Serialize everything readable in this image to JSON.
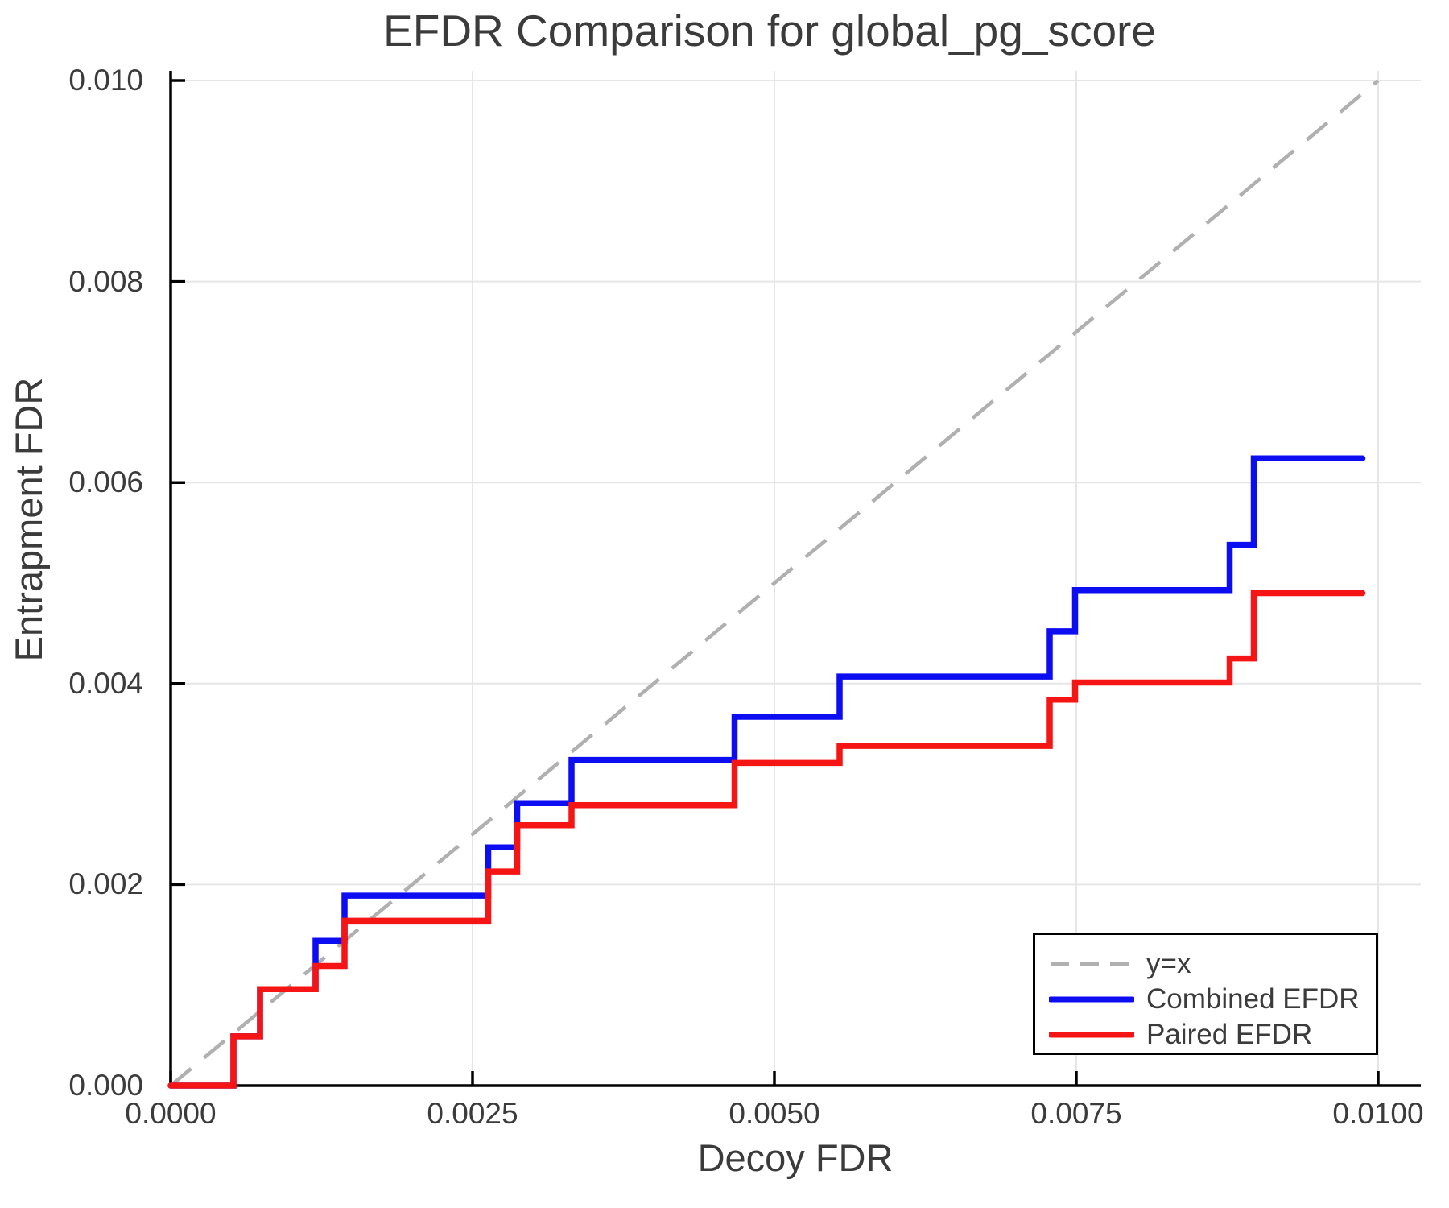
{
  "page": {
    "background": "#ffffff"
  },
  "chart_data": {
    "type": "line",
    "subtype": "step",
    "title": "EFDR Comparison for global_pg_score",
    "xlabel": "Decoy FDR",
    "ylabel": "Entrapment FDR",
    "xlim": [
      0,
      0.01035
    ],
    "ylim": [
      0,
      0.0101
    ],
    "grid": true,
    "x_tick_labels": [
      "0.0000",
      "0.0025",
      "0.0050",
      "0.0075",
      "0.0100"
    ],
    "x_tick_values": [
      0,
      0.0025,
      0.005,
      0.0075,
      0.01
    ],
    "y_tick_labels": [
      "0.000",
      "0.002",
      "0.004",
      "0.006",
      "0.008",
      "0.010"
    ],
    "y_tick_values": [
      0,
      0.002,
      0.004,
      0.006,
      0.008,
      0.01
    ],
    "colors": {
      "grid": "#e6e6e6",
      "axis": "#000000",
      "text": "#3b3b3b",
      "reference": "#b0b0b0",
      "combined": "#0d0df2",
      "paired": "#f51515"
    },
    "reference_line": {
      "label": "y=x",
      "style": "dashed",
      "color": "#b0b0b0",
      "from": [
        0,
        0
      ],
      "to": [
        0.01,
        0.01
      ]
    },
    "series": [
      {
        "name": "Combined EFDR",
        "color": "#0d0df2",
        "style": "solid",
        "start": [
          0,
          0
        ],
        "x_end": 0.00987,
        "steps": [
          [
            0.00052,
            0.00049
          ],
          [
            0.00074,
            0.00096
          ],
          [
            0.0012,
            0.00144
          ],
          [
            0.00144,
            0.00189
          ],
          [
            0.00263,
            0.00237
          ],
          [
            0.00287,
            0.00281
          ],
          [
            0.00332,
            0.00324
          ],
          [
            0.00467,
            0.00367
          ],
          [
            0.00554,
            0.00407
          ],
          [
            0.00728,
            0.00452
          ],
          [
            0.00749,
            0.00493
          ],
          [
            0.00877,
            0.00538
          ],
          [
            0.00897,
            0.00624
          ]
        ]
      },
      {
        "name": "Paired EFDR",
        "color": "#f51515",
        "style": "solid",
        "start": [
          0,
          0
        ],
        "x_end": 0.00987,
        "steps": [
          [
            0.00052,
            0.00049
          ],
          [
            0.00074,
            0.00096
          ],
          [
            0.0012,
            0.00119
          ],
          [
            0.00144,
            0.00164
          ],
          [
            0.00263,
            0.00213
          ],
          [
            0.00287,
            0.00259
          ],
          [
            0.00332,
            0.00279
          ],
          [
            0.00467,
            0.00321
          ],
          [
            0.00554,
            0.00338
          ],
          [
            0.00728,
            0.00384
          ],
          [
            0.00749,
            0.00401
          ],
          [
            0.00877,
            0.00425
          ],
          [
            0.00897,
            0.0049
          ]
        ]
      }
    ],
    "legend": {
      "position": "bottom-right",
      "items": [
        {
          "label": "y=x",
          "color": "#b0b0b0",
          "style": "dashed"
        },
        {
          "label": "Combined EFDR",
          "color": "#0d0df2",
          "style": "solid"
        },
        {
          "label": "Paired EFDR",
          "color": "#f51515",
          "style": "solid"
        }
      ]
    }
  }
}
